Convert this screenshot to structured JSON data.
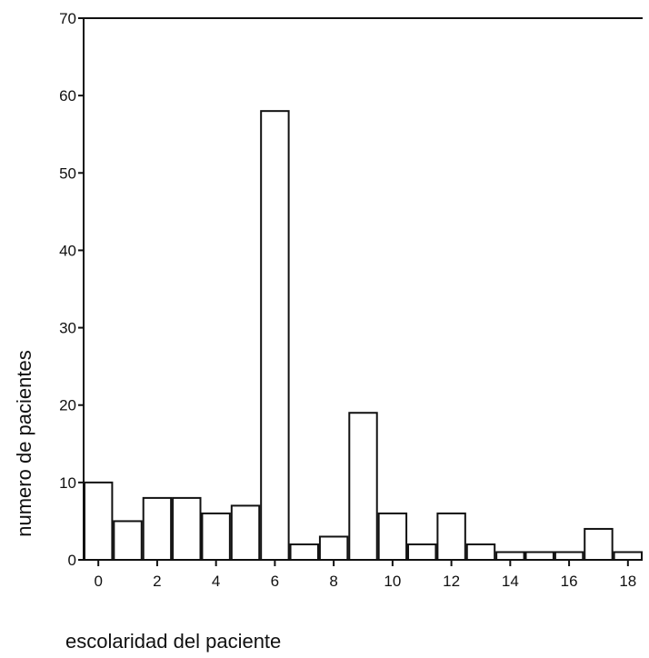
{
  "chart_data": {
    "type": "bar",
    "title": "",
    "xlabel": "escolaridad del paciente",
    "ylabel": "numero de pacientes",
    "x": [
      0,
      1,
      2,
      3,
      4,
      5,
      6,
      7,
      8,
      9,
      10,
      11,
      12,
      13,
      14,
      15,
      16,
      17,
      18
    ],
    "values": [
      10,
      5,
      8,
      8,
      6,
      7,
      58,
      2,
      3,
      19,
      6,
      2,
      6,
      2,
      1,
      1,
      1,
      4,
      1
    ],
    "xticks": [
      "0",
      "2",
      "4",
      "6",
      "8",
      "10",
      "12",
      "14",
      "16",
      "18"
    ],
    "xtick_values": [
      0,
      2,
      4,
      6,
      8,
      10,
      12,
      14,
      16,
      18
    ],
    "yticks": [
      "0",
      "10",
      "20",
      "30",
      "40",
      "50",
      "60",
      "70"
    ],
    "ytick_values": [
      0,
      10,
      20,
      30,
      40,
      50,
      60,
      70
    ],
    "ylim": [
      0,
      70
    ],
    "xlim": [
      -0.5,
      18.5
    ],
    "grid": false,
    "legend": "none",
    "colors": {
      "bar_fill": "#ffffff",
      "bar_stroke": "#111111",
      "axis": "#111111"
    }
  }
}
